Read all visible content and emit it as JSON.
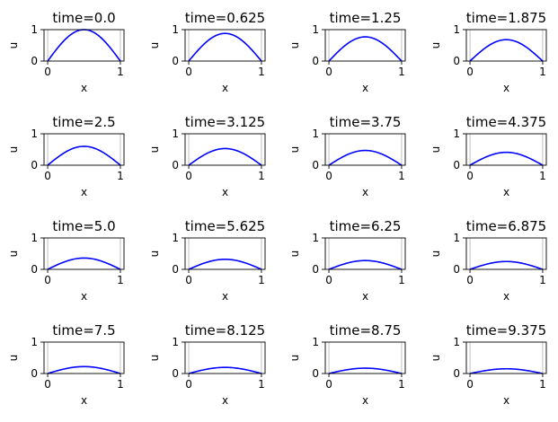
{
  "chart_data": {
    "type": "line",
    "layout": "grid",
    "rows": 4,
    "cols": 4,
    "xlabel": "x",
    "ylabel": "u",
    "xlim": [
      -0.05,
      1.05
    ],
    "ylim": [
      0,
      1
    ],
    "xticks": [
      0,
      1
    ],
    "yticks": [
      0,
      1
    ],
    "x_gridlines": [
      0,
      1
    ],
    "curve": "u = A(t) * sin(pi * x)",
    "line_color": "#0000ff",
    "panels": [
      {
        "title": "time=0.0",
        "amplitude": 1.0
      },
      {
        "title": "time=0.625",
        "amplitude": 0.88
      },
      {
        "title": "time=1.25",
        "amplitude": 0.77
      },
      {
        "title": "time=1.875",
        "amplitude": 0.68
      },
      {
        "title": "time=2.5",
        "amplitude": 0.6
      },
      {
        "title": "time=3.125",
        "amplitude": 0.53
      },
      {
        "title": "time=3.75",
        "amplitude": 0.47
      },
      {
        "title": "time=4.375",
        "amplitude": 0.41
      },
      {
        "title": "time=5.0",
        "amplitude": 0.36
      },
      {
        "title": "time=5.625",
        "amplitude": 0.32
      },
      {
        "title": "time=6.25",
        "amplitude": 0.28
      },
      {
        "title": "time=6.875",
        "amplitude": 0.25
      },
      {
        "title": "time=7.5",
        "amplitude": 0.22
      },
      {
        "title": "time=8.125",
        "amplitude": 0.195
      },
      {
        "title": "time=8.75",
        "amplitude": 0.17
      },
      {
        "title": "time=9.375",
        "amplitude": 0.15
      }
    ]
  }
}
